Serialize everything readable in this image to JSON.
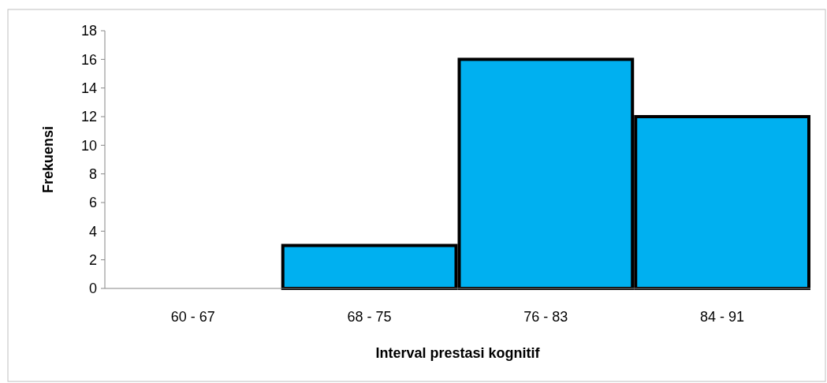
{
  "chart_data": {
    "type": "bar",
    "xlabel": "Interval prestasi kognitif",
    "ylabel": "Frekuensi",
    "categories": [
      "60 - 67",
      "68 - 75",
      "76 - 83",
      "84 - 91"
    ],
    "values": [
      0,
      3,
      16,
      12
    ],
    "color": "#00b0f0",
    "ylim": [
      0,
      18
    ],
    "yticks": [
      0,
      2,
      4,
      6,
      8,
      10,
      12,
      14,
      16,
      18
    ],
    "grid": false
  }
}
